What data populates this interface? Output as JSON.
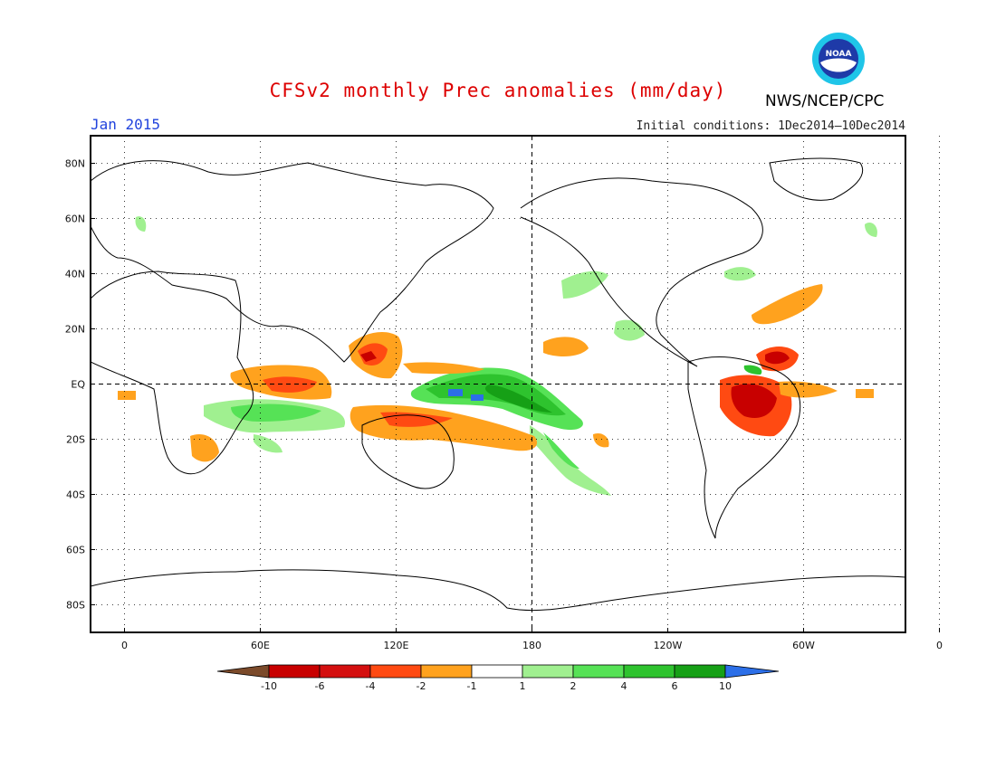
{
  "header": {
    "title": "CFSv2 monthly Prec anomalies (mm/day)",
    "agency": "NWS/NCEP/CPC",
    "month": "Jan 2015",
    "initial_conditions": "Initial conditions: 1Dec2014–10Dec2014",
    "logo_text": "NOAA"
  },
  "map": {
    "lat_labels": [
      "80N",
      "60N",
      "40N",
      "20N",
      "EQ",
      "20S",
      "40S",
      "60S",
      "80S"
    ],
    "lon_labels": [
      "0",
      "60E",
      "120E",
      "180",
      "120W",
      "60W",
      "0"
    ]
  },
  "legend": {
    "levels": [
      "-10",
      "-6",
      "-4",
      "-2",
      "-1",
      "1",
      "2",
      "4",
      "6",
      "10"
    ],
    "colors": [
      "#7b4a2a",
      "#c80000",
      "#d40f0f",
      "#ff4a12",
      "#ffa21e",
      "#ffffff",
      "#a0f090",
      "#56e256",
      "#2ec32e",
      "#16a016",
      "#2c6fe8"
    ]
  }
}
